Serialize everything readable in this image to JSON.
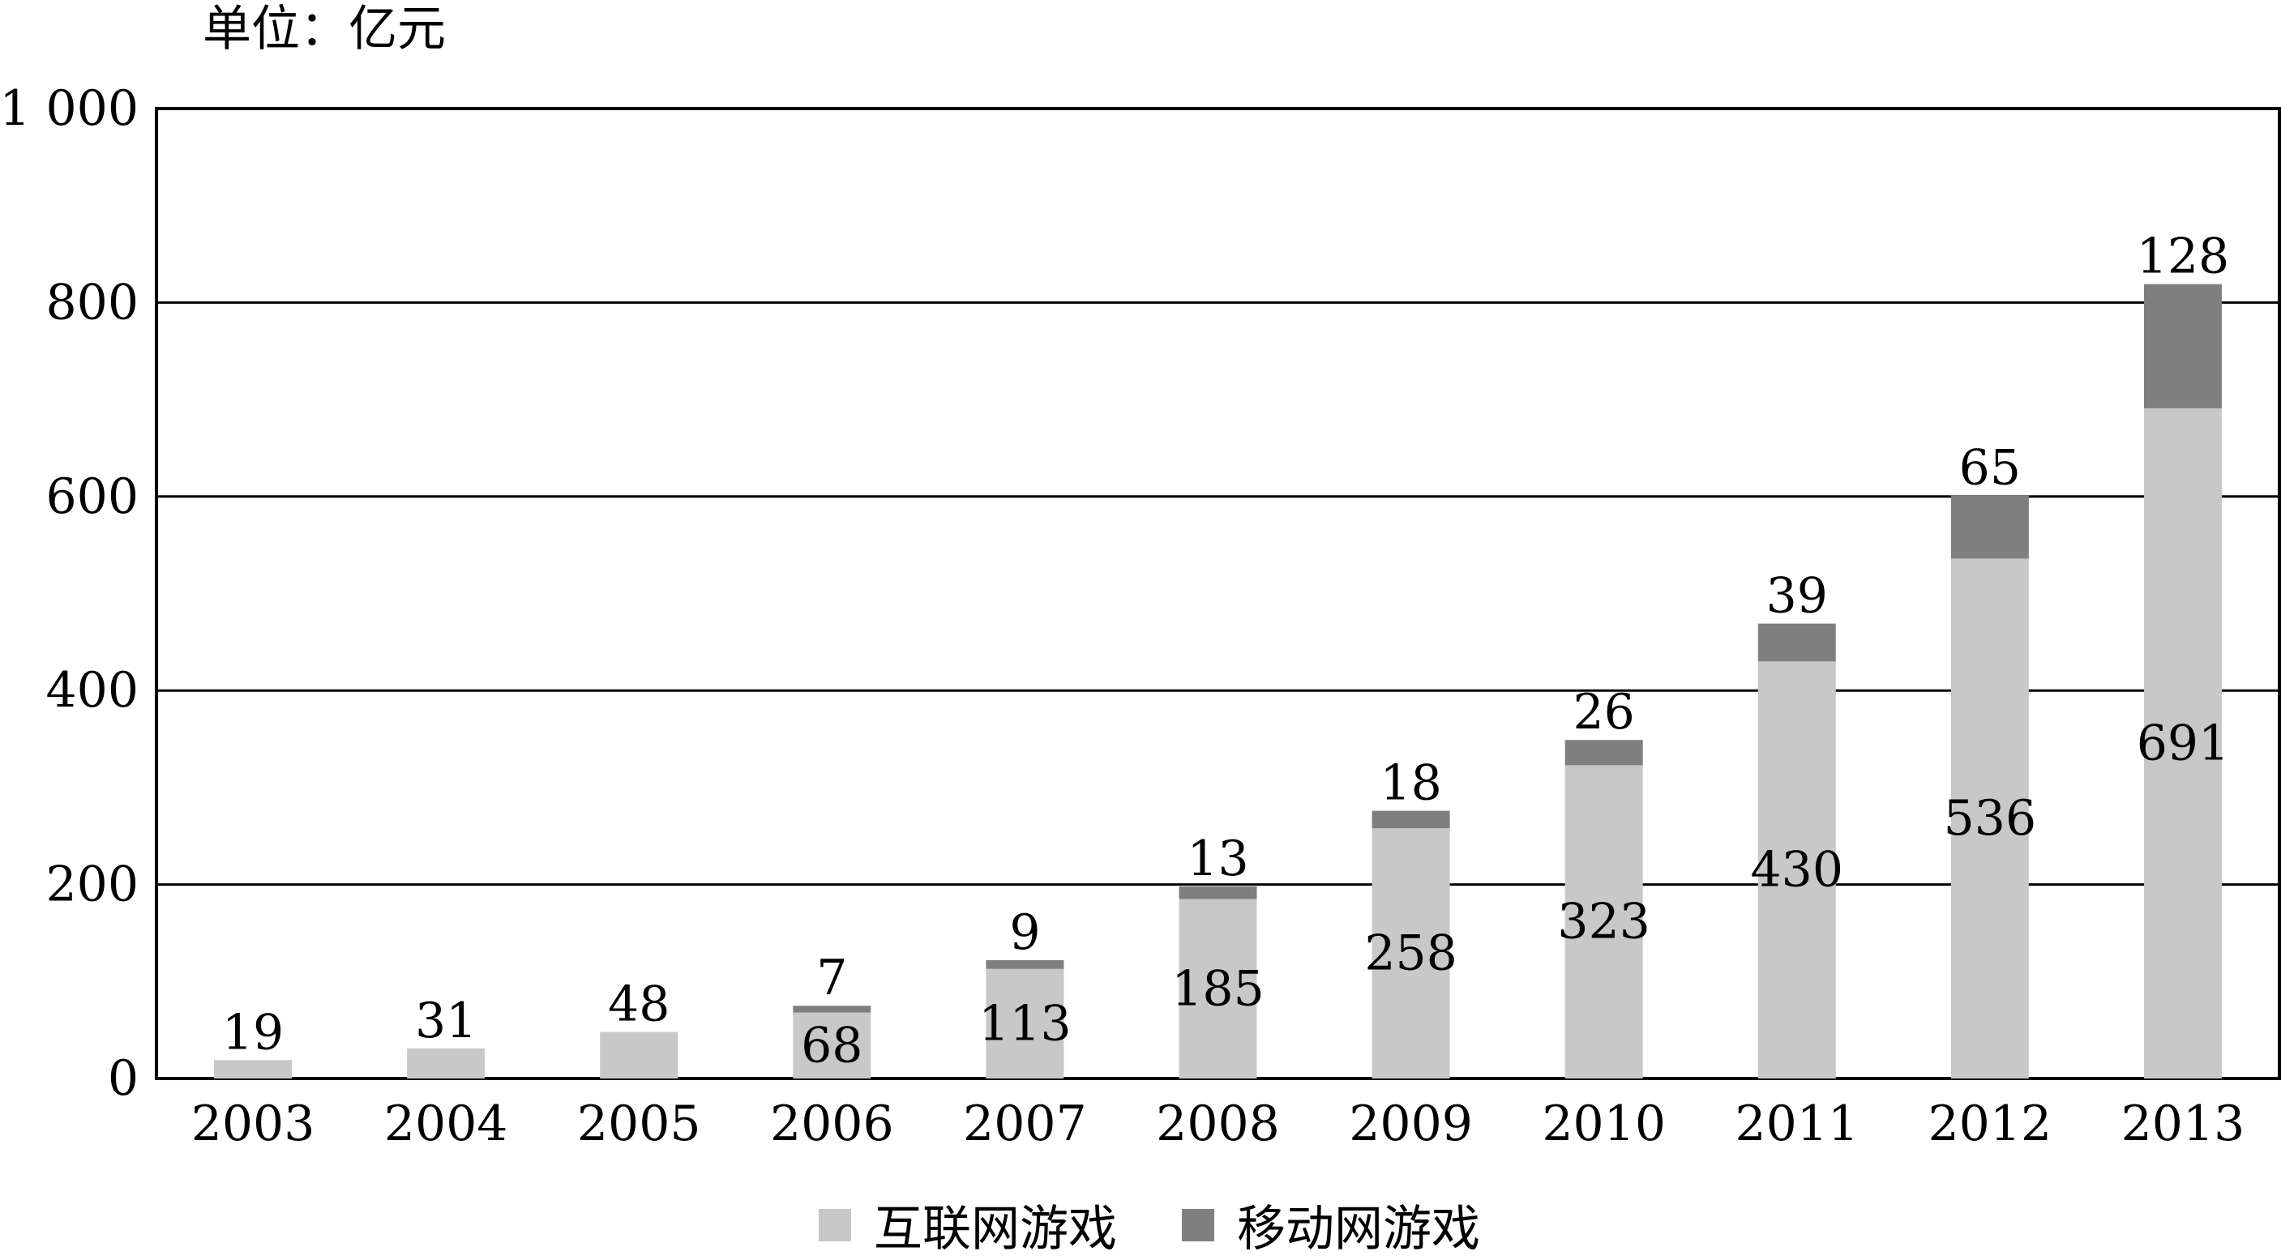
{
  "unit_label": "单位：亿元",
  "legend": {
    "internet_label": "互联网游戏",
    "mobile_label": "移动网游戏"
  },
  "colors": {
    "internet": "#c8c8c8",
    "mobile": "#7f7f7f",
    "grid": "#000000",
    "text": "#000000"
  },
  "chart_data": {
    "type": "bar",
    "stacked": true,
    "categories": [
      "2003",
      "2004",
      "2005",
      "2006",
      "2007",
      "2008",
      "2009",
      "2010",
      "2011",
      "2012",
      "2013"
    ],
    "series": [
      {
        "name": "互联网游戏",
        "values": [
          19,
          31,
          48,
          68,
          113,
          185,
          258,
          323,
          430,
          536,
          691
        ]
      },
      {
        "name": "移动网游戏",
        "values": [
          0,
          0,
          0,
          7,
          9,
          13,
          18,
          26,
          39,
          65,
          128
        ]
      }
    ],
    "ylim": [
      0,
      1000
    ],
    "yticks": [
      0,
      200,
      400,
      600,
      800,
      1000
    ],
    "ytick_labels": [
      "0",
      "200",
      "400",
      "600",
      "800",
      "1 000"
    ],
    "grid": true,
    "legend_position": "bottom"
  }
}
